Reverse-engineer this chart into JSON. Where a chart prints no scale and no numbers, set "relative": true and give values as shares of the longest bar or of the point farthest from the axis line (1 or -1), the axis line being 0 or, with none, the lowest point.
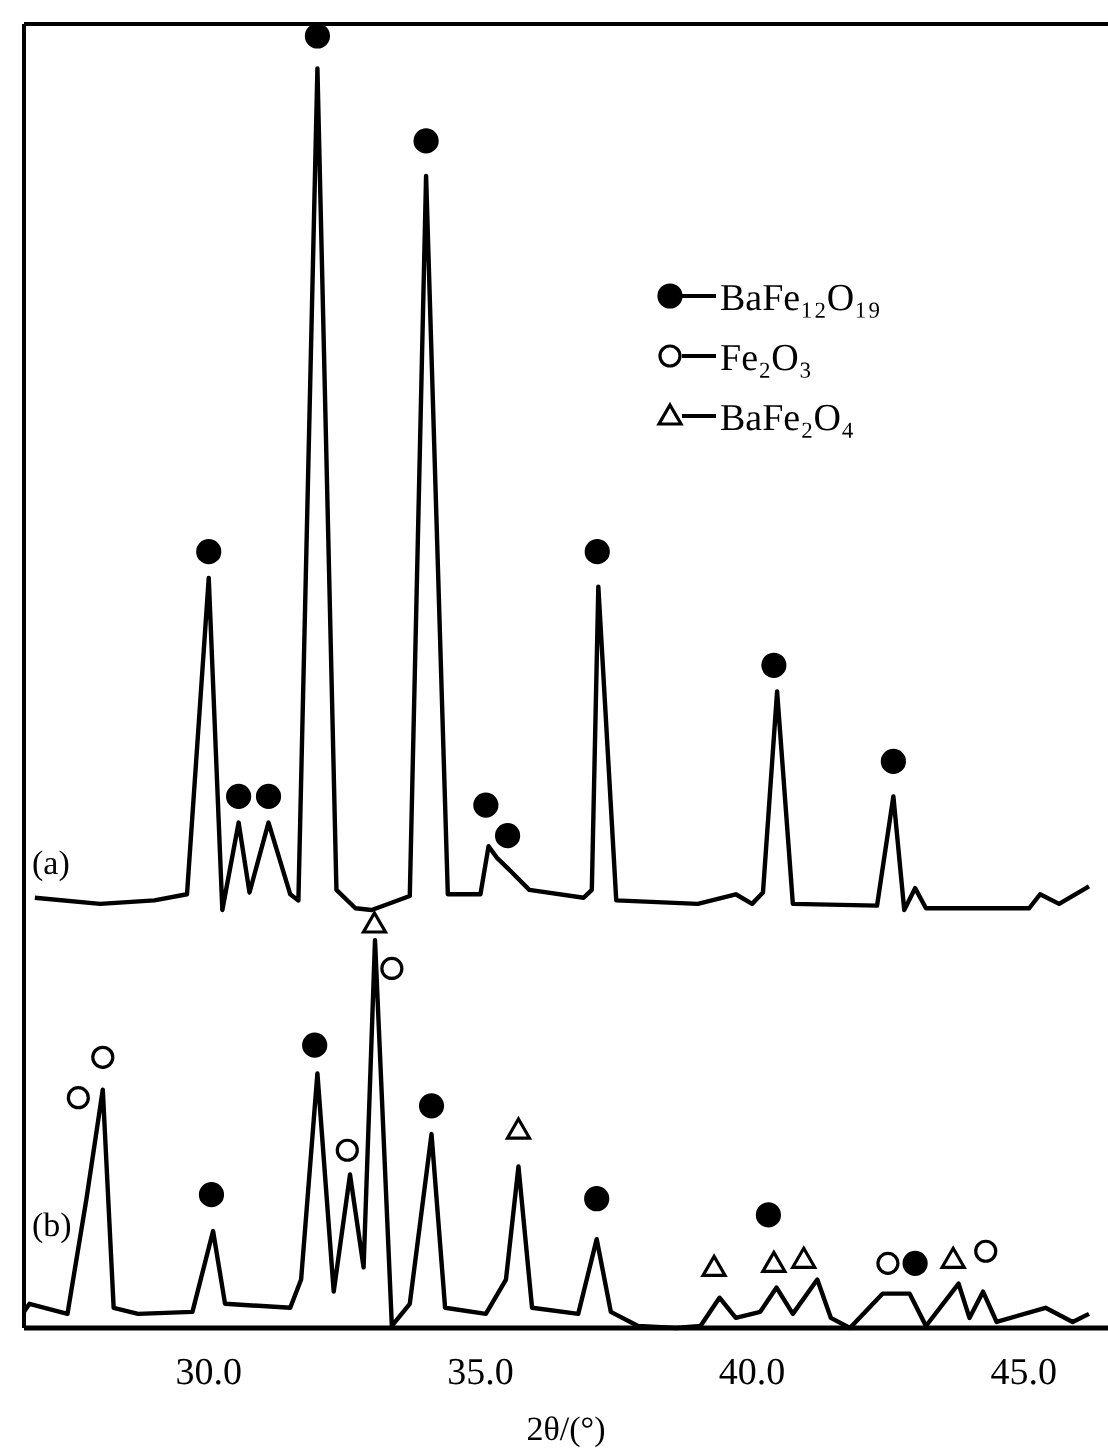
{
  "chart_data": [
    {
      "type": "line",
      "relative": true,
      "xlim": [
        26.6,
        46.55
      ],
      "tick_labels": false,
      "legend": "top right",
      "annotations": [
        "(a)"
      ],
      "series": [
        {
          "color": "#000000",
          "x": [
            26.8,
            28.0,
            29.0,
            29.6,
            30.0,
            30.25,
            30.55,
            30.75,
            31.1,
            31.5,
            31.65,
            32.0,
            32.35,
            32.7,
            33.0,
            33.7,
            34.0,
            34.4,
            35.0,
            35.15,
            35.3,
            35.5,
            35.9,
            36.9,
            37.05,
            37.17,
            37.5,
            39.0,
            39.7,
            40.0,
            40.2,
            40.46,
            40.75,
            42.3,
            42.6,
            42.8,
            43.0,
            43.2,
            45.1,
            45.3,
            45.65,
            46.2
          ],
          "values": [
            0.014,
            0.007,
            0.011,
            0.018,
            0.38,
            0.0,
            0.1,
            0.02,
            0.1,
            0.018,
            0.011,
            0.963,
            0.023,
            0.002,
            0.0,
            0.016,
            0.84,
            0.018,
            0.018,
            0.073,
            0.06,
            0.048,
            0.023,
            0.014,
            0.023,
            0.37,
            0.011,
            0.007,
            0.018,
            0.007,
            0.02,
            0.25,
            0.007,
            0.005,
            0.13,
            0.0,
            0.025,
            0.002,
            0.002,
            0.018,
            0.007,
            0.027
          ]
        },
        {
          "type": "scatter",
          "name": "BaFe₁₂O₁₉",
          "marker": "circle",
          "color": "#000000",
          "x": [
            30.0,
            30.55,
            31.1,
            32.0,
            34.0,
            35.1,
            35.5,
            37.15,
            40.4,
            42.6
          ],
          "values": [
            0.41,
            0.13,
            0.13,
            1.0,
            0.88,
            0.12,
            0.085,
            0.41,
            0.28,
            0.17
          ]
        },
        {
          "type": "scatter",
          "name": "Fe₂O₃",
          "marker": "circle",
          "color": "#ffffff"
        },
        {
          "type": "scatter",
          "name": "BaFe₂O₄",
          "marker": "triangle",
          "color": "#ffffff"
        }
      ]
    },
    {
      "type": "line",
      "relative": true,
      "xlim": [
        26.6,
        46.55
      ],
      "xticks": [
        {
          "value": 30,
          "label": "30.0"
        },
        {
          "value": 35,
          "label": "35.0"
        },
        {
          "value": 40,
          "label": "40.0"
        },
        {
          "value": 45,
          "label": "45.0"
        }
      ],
      "xlabel": "2θ/(°)",
      "tick_labels": "x",
      "annotations": [
        "(b)"
      ],
      "series": [
        {
          "color": "#000000",
          "x": [
            26.6,
            26.7,
            27.4,
            27.75,
            28.05,
            28.25,
            28.7,
            29.7,
            30.08,
            30.3,
            31.5,
            31.7,
            32.0,
            32.3,
            32.6,
            32.85,
            33.06,
            33.37,
            33.7,
            34.1,
            34.35,
            35.1,
            35.47,
            35.7,
            35.95,
            36.8,
            37.14,
            37.4,
            37.9,
            38.6,
            39.05,
            39.4,
            39.7,
            40.15,
            40.45,
            40.75,
            41.2,
            41.45,
            41.8,
            42.4,
            42.9,
            43.2,
            43.8,
            44.0,
            44.25,
            44.5,
            45.4,
            45.9,
            46.2
          ],
          "values": [
            0.04,
            0.06,
            0.035,
            0.32,
            0.59,
            0.05,
            0.035,
            0.04,
            0.24,
            0.06,
            0.05,
            0.12,
            0.63,
            0.09,
            0.38,
            0.15,
            0.96,
            0.005,
            0.06,
            0.48,
            0.05,
            0.035,
            0.12,
            0.4,
            0.05,
            0.035,
            0.22,
            0.04,
            0.005,
            0.0,
            0.005,
            0.075,
            0.025,
            0.04,
            0.1,
            0.035,
            0.12,
            0.025,
            0.0,
            0.085,
            0.085,
            0.005,
            0.11,
            0.025,
            0.09,
            0.015,
            0.05,
            0.015,
            0.035
          ]
        },
        {
          "type": "scatter",
          "marker": "circle",
          "color": "#000000",
          "x": [
            30.05,
            31.95,
            34.1,
            37.14,
            40.3,
            43.0
          ],
          "values": [
            0.33,
            0.7,
            0.55,
            0.32,
            0.28,
            0.16
          ]
        },
        {
          "type": "scatter",
          "marker": "circle",
          "color": "#ffffff",
          "x": [
            27.6,
            28.05,
            32.55,
            33.37,
            42.5,
            44.3
          ],
          "values": [
            0.57,
            0.67,
            0.44,
            0.89,
            0.16,
            0.19
          ]
        },
        {
          "type": "scatter",
          "marker": "triangle",
          "color": "#ffffff",
          "x": [
            33.05,
            35.7,
            39.3,
            40.4,
            40.95,
            43.7
          ],
          "values": [
            1.0,
            0.49,
            0.15,
            0.16,
            0.17,
            0.17
          ]
        }
      ]
    }
  ]
}
